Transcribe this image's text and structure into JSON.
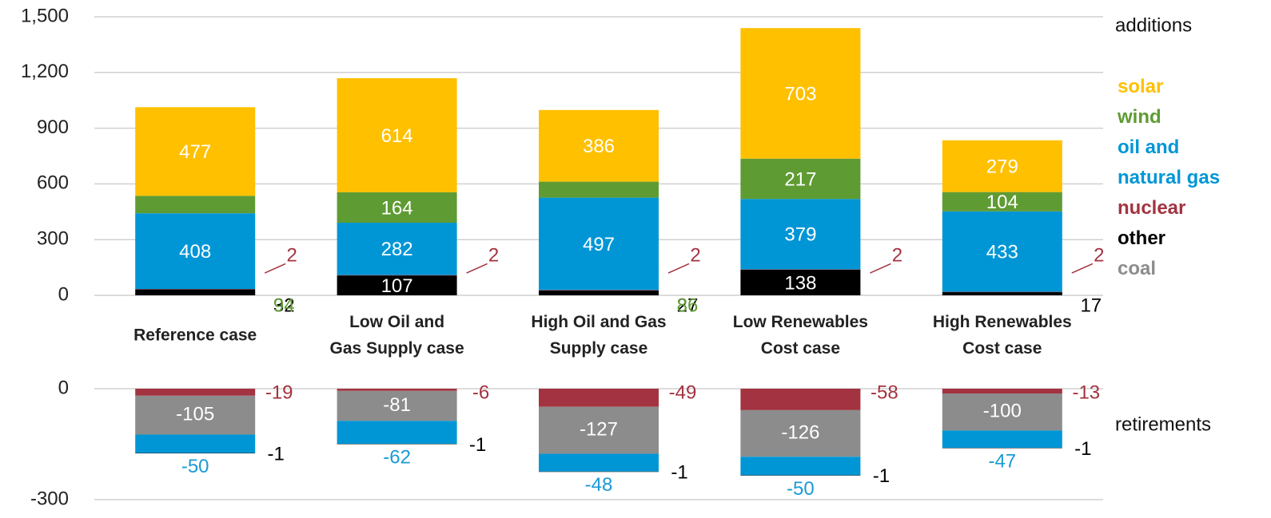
{
  "chart_data": [
    {
      "type": "bar",
      "stacked": true,
      "annotation": "additions",
      "categories": [
        "Reference case",
        "Low Oil and\nGas Supply case",
        "High Oil and Gas\nSupply case",
        "Low Renewables\nCost case",
        "High Renewables\nCost case"
      ],
      "series": [
        {
          "name": "solar",
          "color": "#FFC000",
          "values": [
            477,
            614,
            386,
            703,
            279
          ]
        },
        {
          "name": "wind",
          "color": "#5F9B33",
          "values": [
            94,
            164,
            86,
            217,
            104
          ]
        },
        {
          "name": "oil and\nnatural gas",
          "color": "#0096D6",
          "values": [
            408,
            282,
            497,
            379,
            433
          ]
        },
        {
          "name": "nuclear",
          "color": "#A33340",
          "values": [
            2,
            2,
            2,
            2,
            2
          ]
        },
        {
          "name": "other",
          "color": "#000000",
          "values": [
            32,
            107,
            27,
            138,
            17
          ]
        },
        {
          "name": "coal",
          "color": "#8C8C8C",
          "values": [
            null,
            null,
            null,
            null,
            null
          ]
        }
      ],
      "ylim": [
        0,
        1500
      ],
      "yticks": [
        0,
        300,
        600,
        900,
        {
          "value": 1200,
          "label": "1,200"
        },
        {
          "value": 1500,
          "label": "1,500"
        }
      ],
      "grid": true,
      "legend": "right"
    },
    {
      "type": "bar",
      "stacked": true,
      "annotation": "retirements",
      "series": [
        {
          "color": "#A33340",
          "values": [
            -19,
            -6,
            -49,
            -58,
            -13
          ]
        },
        {
          "color": "#8C8C8C",
          "values": [
            -105,
            -81,
            -127,
            -126,
            -100
          ]
        },
        {
          "color": "#0096D6",
          "values": [
            -50,
            -62,
            -48,
            -50,
            -47
          ]
        },
        {
          "color": "#000000",
          "values": [
            -1,
            -1,
            -1,
            -1,
            -1
          ]
        }
      ],
      "ylim": [
        -300,
        0
      ],
      "yticks": [
        -300,
        0
      ],
      "grid": true
    }
  ]
}
